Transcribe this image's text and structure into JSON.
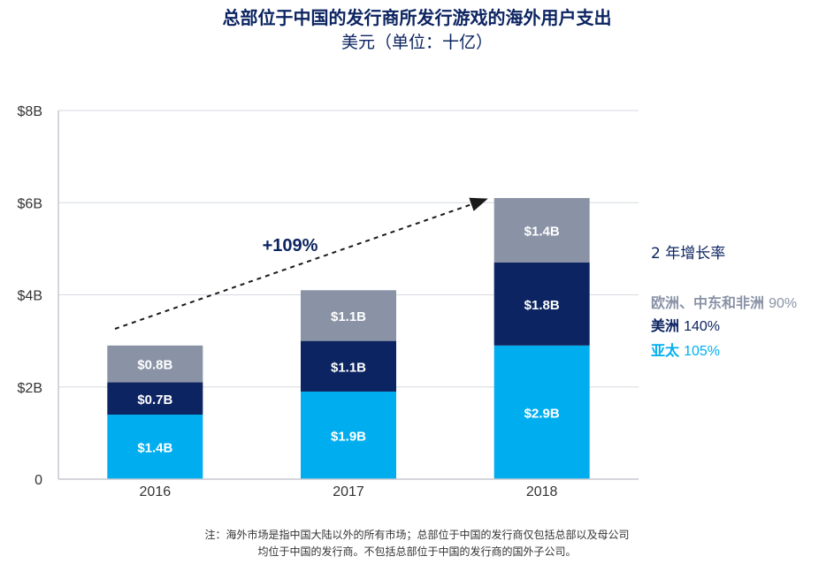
{
  "title": "总部位于中国的发行商所发行游戏的海外用户支出",
  "subtitle": "美元（单位：十亿）",
  "chart_data": {
    "type": "bar",
    "stacked": true,
    "categories": [
      "2016",
      "2017",
      "2018"
    ],
    "series": [
      {
        "name": "亚太",
        "values": [
          1.4,
          1.9,
          2.9
        ],
        "labels": [
          "$1.4B",
          "$1.9B",
          "$2.9B"
        ],
        "color": "#00aeef"
      },
      {
        "name": "美洲",
        "values": [
          0.7,
          1.1,
          1.8
        ],
        "labels": [
          "$0.7B",
          "$1.1B",
          "$1.8B"
        ],
        "color": "#0c2461"
      },
      {
        "name": "欧洲、中东和非洲",
        "values": [
          0.8,
          1.1,
          1.4
        ],
        "labels": [
          "$0.8B",
          "$1.1B",
          "$1.4B"
        ],
        "color": "#8a93a6"
      }
    ],
    "ylim": [
      0,
      8
    ],
    "yticks": [
      {
        "value": 0,
        "label": "0"
      },
      {
        "value": 2,
        "label": "$2B"
      },
      {
        "value": 4,
        "label": "$4B"
      },
      {
        "value": 6,
        "label": "$6B"
      },
      {
        "value": 8,
        "label": "$8B"
      }
    ],
    "grid": true,
    "annotation": "+109%",
    "legend_placement": "right"
  },
  "legend": {
    "title": "2 年增长率",
    "items": [
      {
        "name": "欧洲、中东和非洲",
        "rate": "90%",
        "color": "#8a93a6"
      },
      {
        "name": "美洲",
        "rate": "140%",
        "color": "#0c2461"
      },
      {
        "name": "亚太",
        "rate": "105%",
        "color": "#00aeef"
      }
    ]
  },
  "footnote": [
    "注：海外市场是指中国大陆以外的所有市场；总部位于中国的发行商仅包括总部以及母公司",
    "均位于中国的发行商。不包括总部位于中国的发行商的国外子公司。"
  ]
}
